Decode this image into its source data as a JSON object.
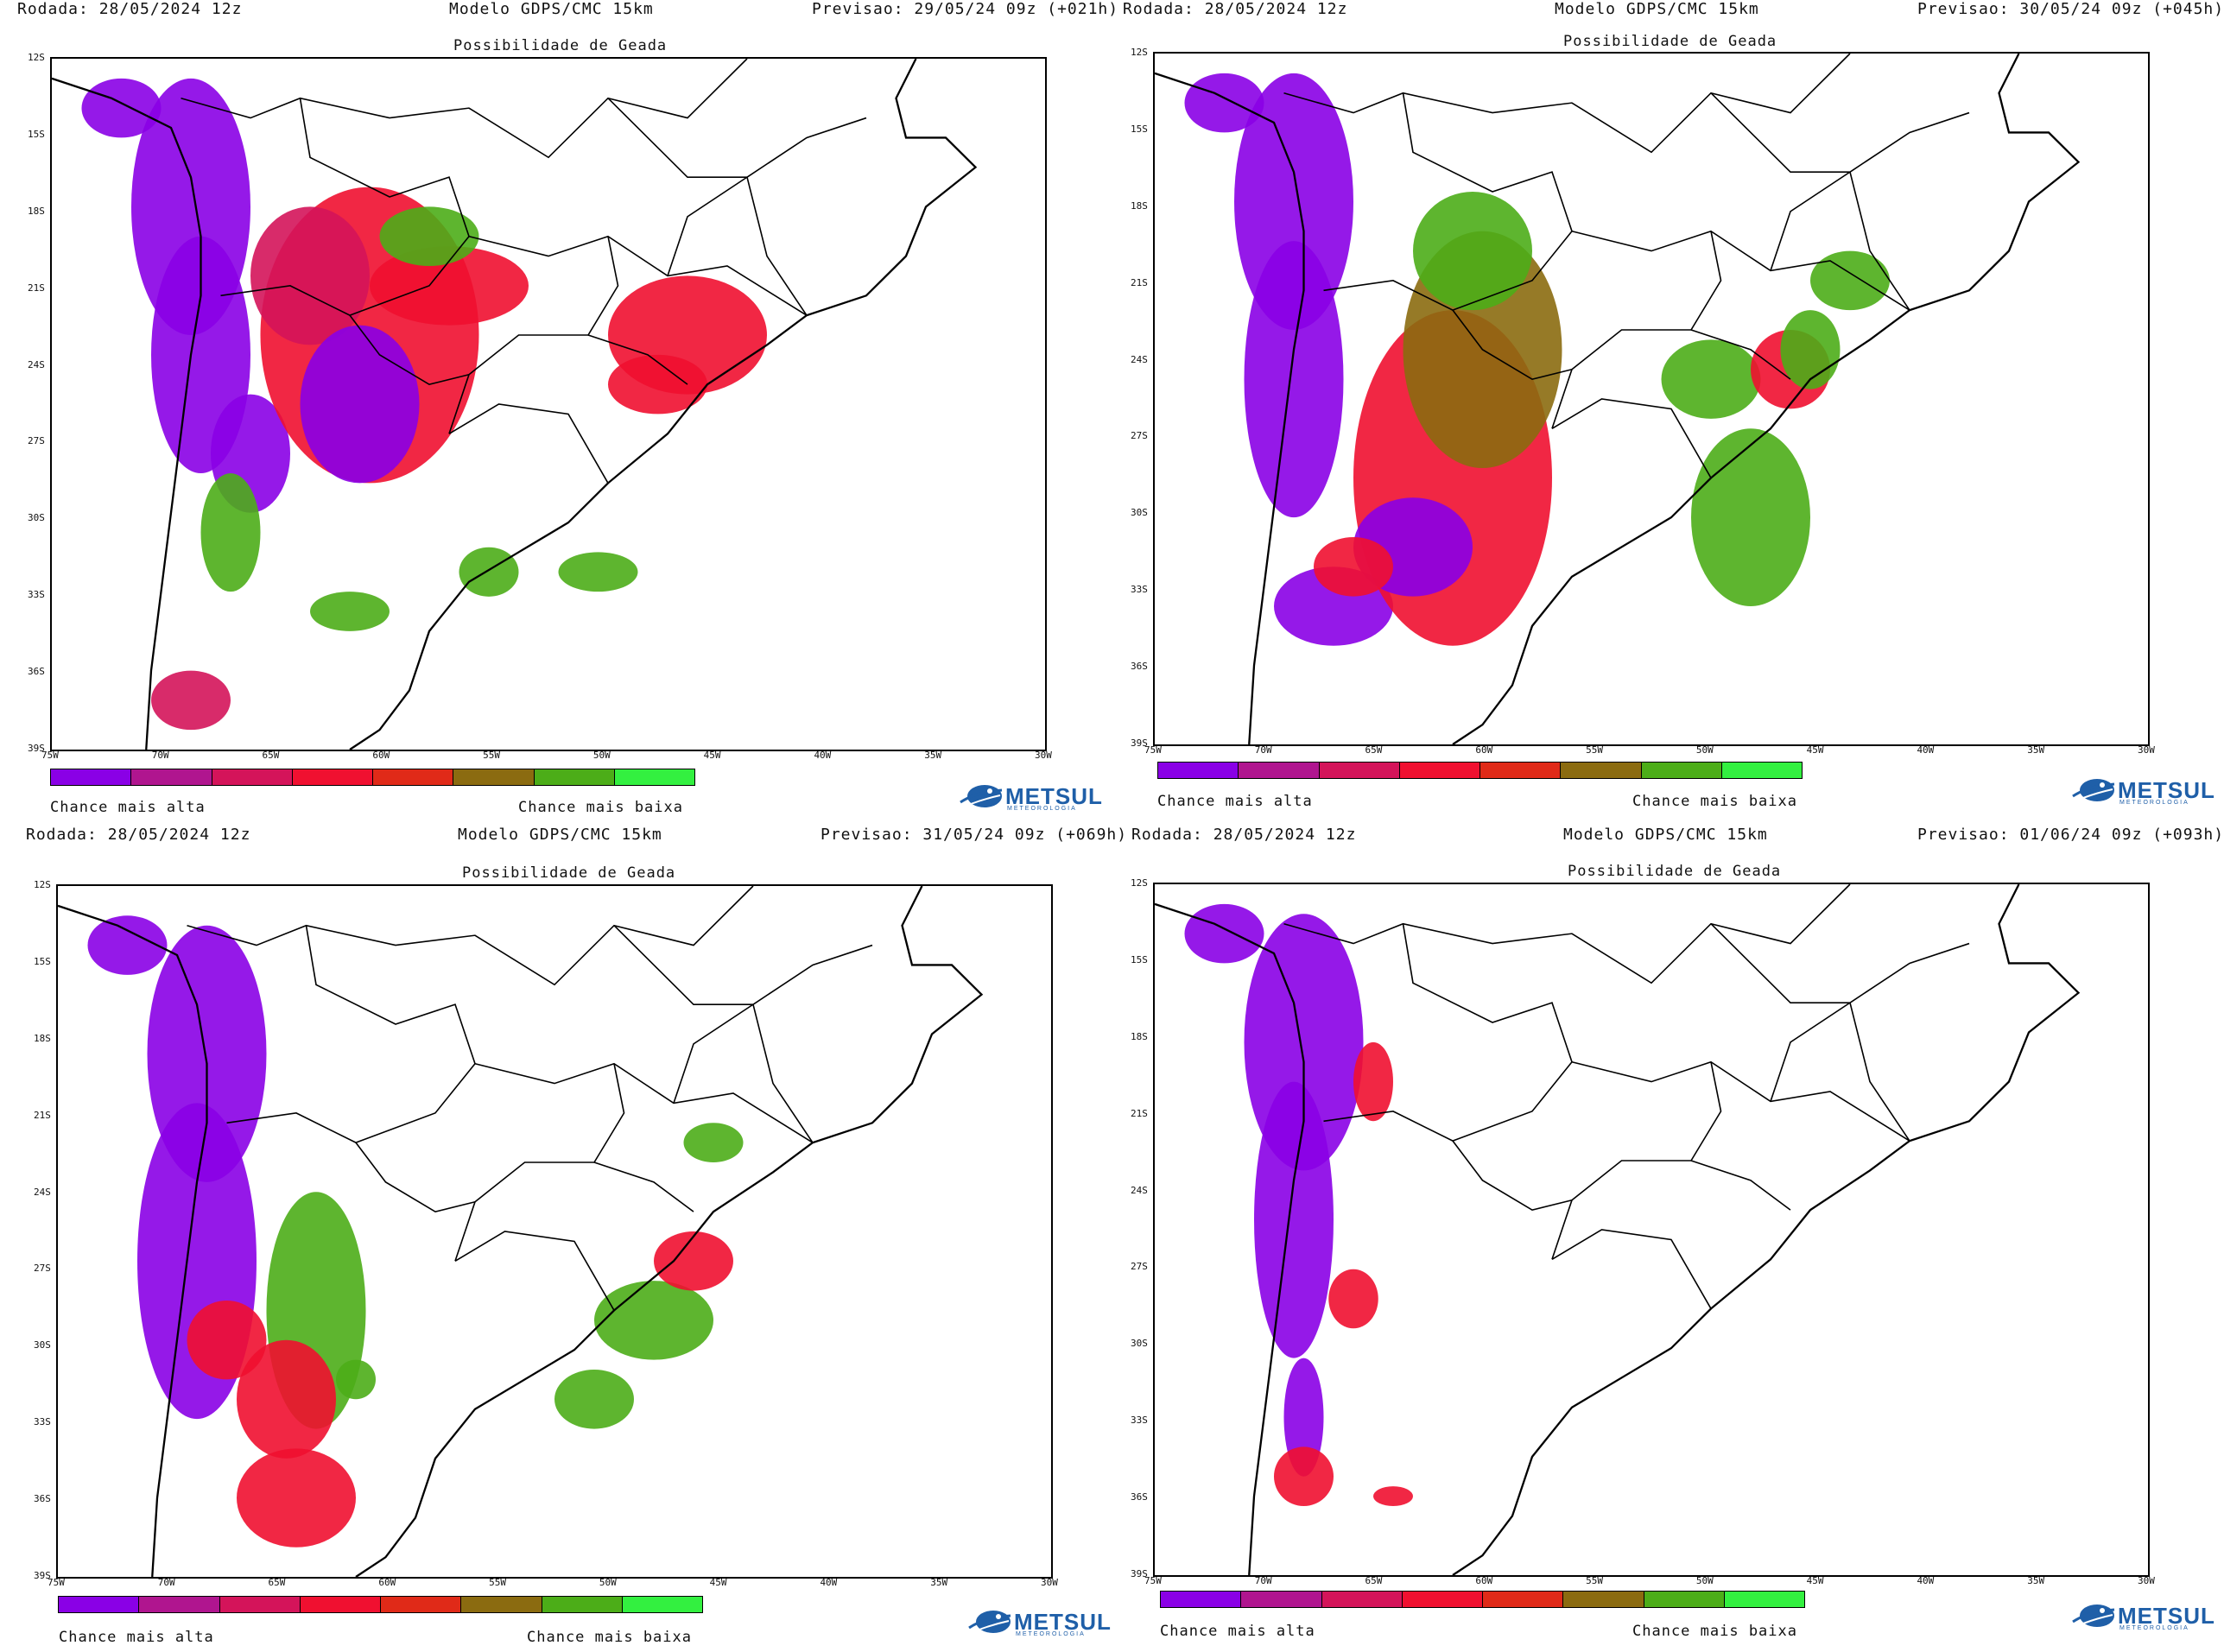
{
  "panels": [
    {
      "rodada": "Rodada: 28/05/2024 12z",
      "modelo": "Modelo GDPS/CMC 15km",
      "previsao": "Previsao: 29/05/24 09z (+021h)",
      "subtitle": "Possibilidade de Geada"
    },
    {
      "rodada": "Rodada: 28/05/2024 12z",
      "modelo": "Modelo GDPS/CMC 15km",
      "previsao": "Previsao: 30/05/24 09z (+045h)",
      "subtitle": "Possibilidade de Geada"
    },
    {
      "rodada": "Rodada: 28/05/2024 12z",
      "modelo": "Modelo GDPS/CMC 15km",
      "previsao": "Previsao: 31/05/24 09z (+069h)",
      "subtitle": "Possibilidade de Geada"
    },
    {
      "rodada": "Rodada: 28/05/2024 12z",
      "modelo": "Modelo GDPS/CMC 15km",
      "previsao": "Previsao: 01/06/24 09z (+093h)",
      "subtitle": "Possibilidade de Geada"
    }
  ],
  "lat_ticks": [
    "12S",
    "15S",
    "18S",
    "21S",
    "24S",
    "27S",
    "30S",
    "33S",
    "36S",
    "39S"
  ],
  "lon_ticks": [
    "75W",
    "70W",
    "65W",
    "60W",
    "55W",
    "50W",
    "45W",
    "40W",
    "35W",
    "30W"
  ],
  "legend": {
    "high_label": "Chance mais alta",
    "low_label": "Chance mais baixa",
    "colors": [
      "#8a00e6",
      "#b0158f",
      "#d4145a",
      "#f01030",
      "#e02a18",
      "#8b6b10",
      "#4cad18",
      "#33f040"
    ]
  },
  "logo": {
    "name": "METSUL",
    "tagline": "METEOROLOGIA"
  }
}
